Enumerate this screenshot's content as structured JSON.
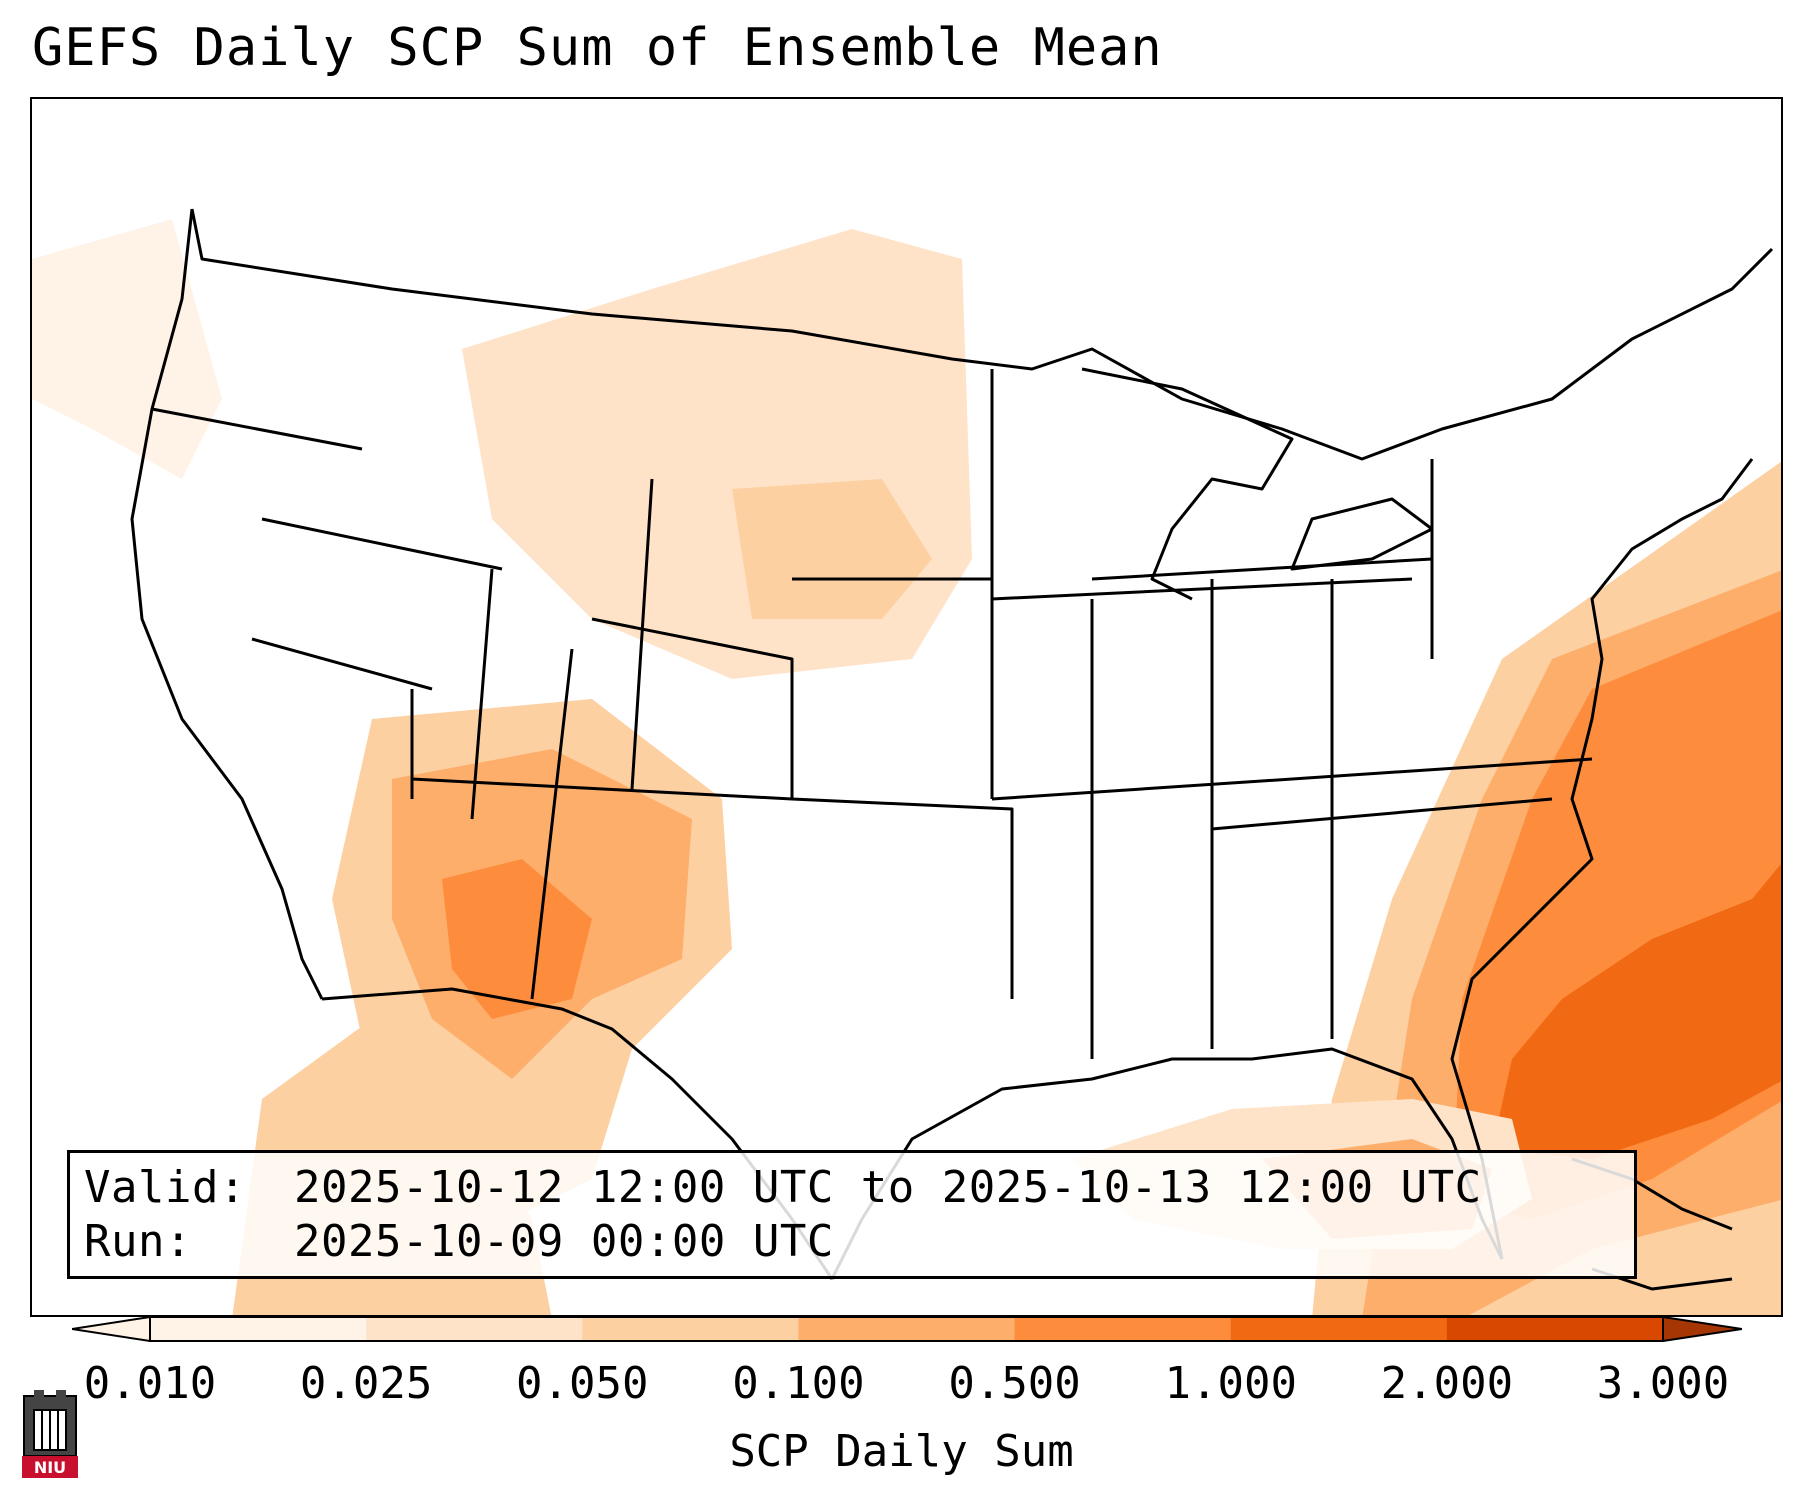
{
  "title": "GEFS Daily SCP Sum of Ensemble Mean",
  "info": {
    "valid_label": "Valid:",
    "valid_value": "2025-10-12 12:00 UTC to 2025-10-13 12:00 UTC",
    "run_label": "Run:",
    "run_value": "2025-10-09 00:00 UTC"
  },
  "colorbar": {
    "label": "SCP Daily Sum",
    "ticks": [
      "0.010",
      "0.025",
      "0.050",
      "0.100",
      "0.500",
      "1.000",
      "2.000",
      "3.000"
    ],
    "colors": [
      "#fff2e6",
      "#fee3c8",
      "#fdd0a2",
      "#fdae6b",
      "#fd8d3c",
      "#f16913",
      "#d94801",
      "#a63603"
    ],
    "extend": "both"
  },
  "logo": {
    "text": "NIU",
    "icon": "niu-logo-icon"
  },
  "map": {
    "region": "Continental United States",
    "field": "SCP daily sum shading",
    "max_region": "Western Atlantic east of Florida",
    "other_regions": [
      "Arizona / New Mexico",
      "Nebraska / Dakotas",
      "Eastern Montana",
      "Northern Mexico",
      "Gulf of Mexico"
    ]
  }
}
